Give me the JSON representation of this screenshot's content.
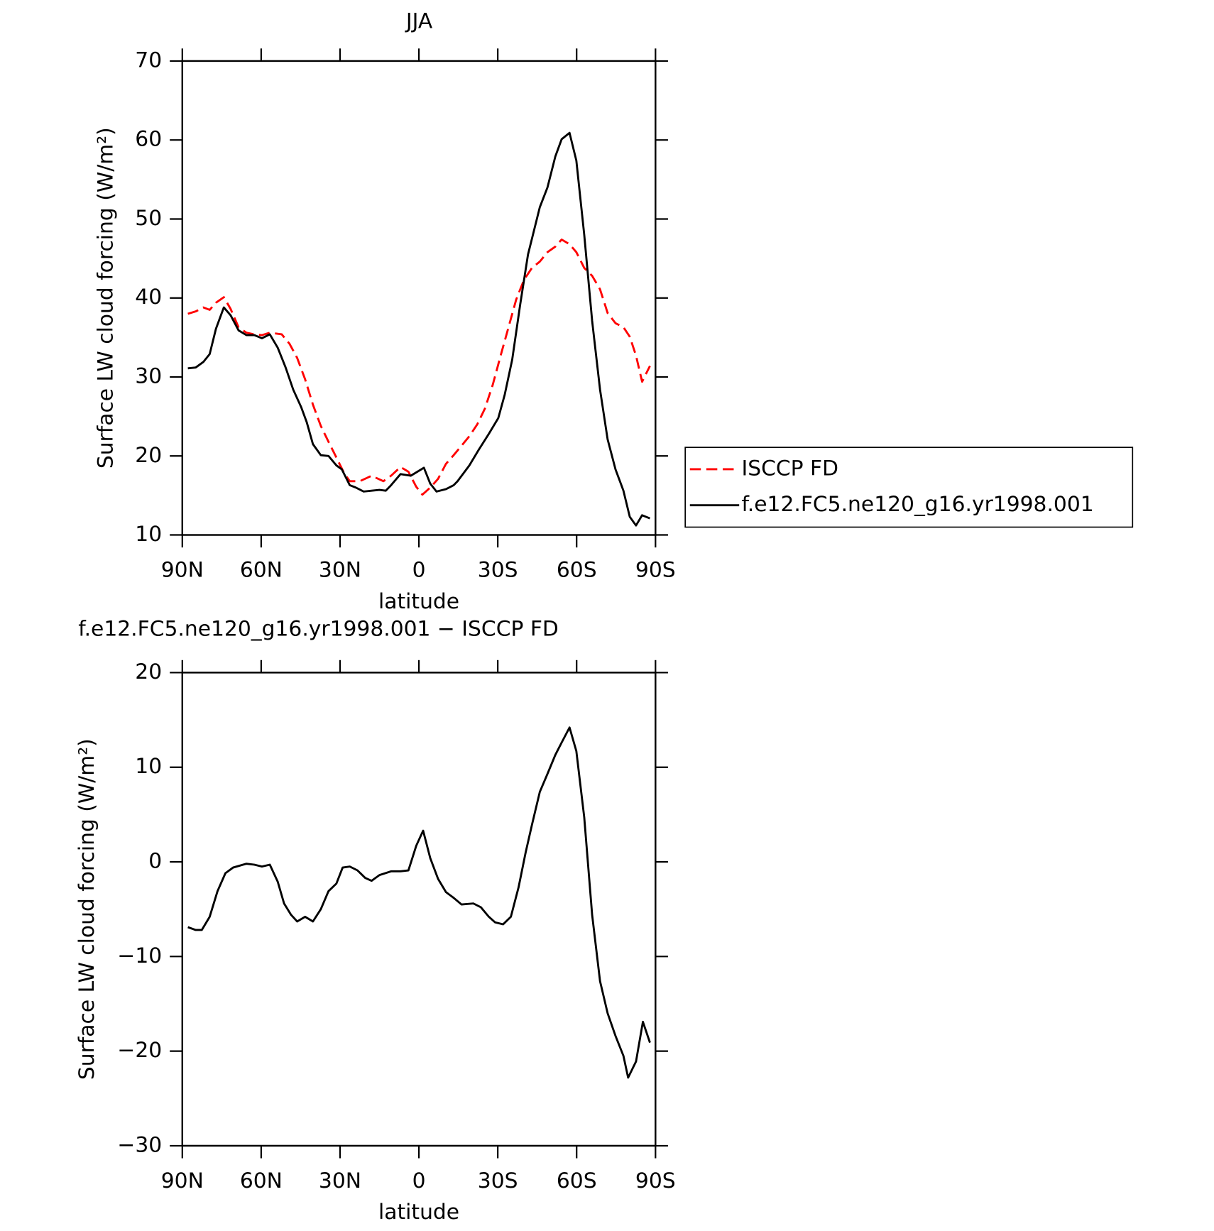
{
  "chart_data": [
    {
      "type": "line",
      "title": "JJA",
      "xlabel": "latitude",
      "ylabel": "Surface LW cloud forcing (W/m²)",
      "xlim": [
        90,
        -90
      ],
      "xticks": [
        {
          "value": 90,
          "label": "90N"
        },
        {
          "value": 60,
          "label": "60N"
        },
        {
          "value": 30,
          "label": "30N"
        },
        0,
        {
          "value": -30,
          "label": "30S"
        },
        {
          "value": -60,
          "label": "60S"
        },
        {
          "value": -90,
          "label": "90S"
        }
      ],
      "ylim": [
        10,
        70
      ],
      "yticks": [
        10,
        20,
        30,
        40,
        50,
        60,
        70
      ],
      "legend": "right",
      "series": [
        {
          "name": "ISCCP FD",
          "color": "#ff0000",
          "dash": true,
          "x": [
            87.9,
            84.9,
            82.0,
            79.6,
            77.2,
            74.2,
            71.6,
            68.6,
            65.6,
            62.6,
            59.7,
            56.7,
            52.2,
            49.2,
            46.3,
            43.3,
            40.3,
            37.3,
            34.4,
            31.4,
            28.4,
            26.3,
            22.5,
            18.0,
            13.5,
            10.6,
            7.0,
            4.0,
            1.0,
            -1.3,
            -4.3,
            -7.3,
            -10.3,
            -13.2,
            -16.2,
            -19.2,
            -22.2,
            -25.1,
            -28.1,
            -31.1,
            -34.1,
            -37.0,
            -40.0,
            -43.0,
            -46.0,
            -48.9,
            -51.9,
            -54.3,
            -57.3,
            -59.9,
            -62.9,
            -65.9,
            -68.9,
            -71.8,
            -74.8,
            -77.8,
            -80.2,
            -82.6,
            -84.9,
            -87.9
          ],
          "values": [
            38.0,
            38.3,
            38.8,
            38.5,
            39.4,
            40.1,
            38.6,
            36.3,
            35.6,
            35.4,
            35.3,
            35.6,
            35.4,
            34.2,
            32.4,
            29.7,
            26.5,
            23.8,
            21.8,
            19.8,
            17.8,
            16.8,
            16.8,
            17.5,
            16.8,
            17.5,
            18.6,
            18.0,
            16.1,
            15.1,
            16.0,
            17.1,
            19.0,
            20.1,
            21.3,
            22.5,
            24.0,
            26.0,
            29.0,
            32.7,
            36.3,
            39.8,
            42.3,
            43.8,
            44.6,
            45.8,
            46.5,
            47.4,
            46.8,
            45.8,
            43.8,
            42.8,
            41.1,
            38.1,
            36.8,
            36.3,
            35.1,
            32.7,
            29.4,
            31.4
          ]
        },
        {
          "name": "f.e12.FC5.ne120_g16.yr1998.001",
          "color": "#000000",
          "dash": false,
          "x": [
            87.9,
            84.9,
            82.0,
            79.6,
            77.2,
            74.2,
            71.6,
            68.6,
            65.6,
            62.6,
            59.7,
            56.7,
            53.7,
            50.7,
            47.8,
            44.8,
            42.7,
            40.3,
            37.3,
            34.4,
            31.4,
            29.3,
            26.3,
            24.0,
            21.0,
            18.0,
            15.0,
            12.6,
            10.6,
            7.0,
            3.1,
            -1.9,
            -4.3,
            -6.7,
            -10.3,
            -13.2,
            -14.7,
            -19.2,
            -22.8,
            -26.6,
            -30.2,
            -32.6,
            -35.5,
            -38.5,
            -41.5,
            -46.0,
            -48.9,
            -51.9,
            -54.3,
            -57.3,
            -59.9,
            -62.9,
            -65.9,
            -68.9,
            -71.8,
            -74.8,
            -77.8,
            -80.2,
            -82.6,
            -84.9,
            -87.9
          ],
          "values": [
            31.1,
            31.2,
            31.9,
            32.9,
            36.1,
            38.8,
            37.8,
            35.9,
            35.3,
            35.3,
            34.9,
            35.4,
            33.7,
            31.2,
            28.4,
            26.2,
            24.3,
            21.5,
            20.1,
            20.0,
            18.8,
            18.3,
            16.3,
            16.0,
            15.5,
            15.6,
            15.7,
            15.6,
            16.3,
            17.7,
            17.5,
            18.5,
            16.5,
            15.5,
            15.8,
            16.3,
            16.8,
            18.8,
            20.8,
            22.8,
            24.8,
            27.7,
            32.2,
            39.1,
            45.5,
            51.5,
            54.0,
            57.9,
            60.1,
            60.9,
            57.4,
            48.0,
            37.1,
            28.4,
            22.1,
            18.3,
            15.6,
            12.3,
            11.2,
            12.5,
            12.1
          ]
        }
      ]
    },
    {
      "type": "line",
      "title": "f.e12.FC5.ne120_g16.yr1998.001 − ISCCP FD",
      "xlabel": "latitude",
      "ylabel": "Surface LW cloud forcing (W/m²)",
      "xlim": [
        90,
        -90
      ],
      "xticks": [
        {
          "value": 90,
          "label": "90N"
        },
        {
          "value": 60,
          "label": "60N"
        },
        {
          "value": 30,
          "label": "30N"
        },
        0,
        {
          "value": -30,
          "label": "30S"
        },
        {
          "value": -60,
          "label": "60S"
        },
        {
          "value": -90,
          "label": "90S"
        }
      ],
      "ylim": [
        -30,
        20
      ],
      "yticks": [
        {
          "value": -30,
          "label": "−30"
        },
        {
          "value": -20,
          "label": "−20"
        },
        {
          "value": -10,
          "label": "−10"
        },
        0,
        10,
        20
      ],
      "series": [
        {
          "color": "#000000",
          "dash": false,
          "x": [
            87.9,
            84.9,
            82.6,
            79.6,
            76.6,
            73.6,
            70.7,
            65.6,
            62.6,
            59.7,
            56.7,
            53.7,
            51.3,
            48.6,
            46.3,
            43.3,
            40.3,
            37.3,
            34.4,
            31.4,
            29.0,
            26.3,
            23.4,
            20.4,
            18.0,
            15.0,
            10.6,
            7.0,
            4.0,
            1.0,
            -1.6,
            -4.3,
            -7.3,
            -10.3,
            -13.2,
            -16.2,
            -20.7,
            -23.6,
            -26.6,
            -29.0,
            -32.0,
            -35.0,
            -37.9,
            -40.6,
            -43.0,
            -46.0,
            -48.9,
            -51.9,
            -54.3,
            -57.3,
            -59.9,
            -62.9,
            -65.9,
            -68.9,
            -71.8,
            -74.8,
            -77.8,
            -79.6,
            -82.6,
            -85.2,
            -87.9
          ],
          "values": [
            -6.9,
            -7.2,
            -7.2,
            -5.8,
            -3.1,
            -1.2,
            -0.6,
            -0.2,
            -0.3,
            -0.5,
            -0.3,
            -2.1,
            -4.4,
            -5.6,
            -6.3,
            -5.8,
            -6.3,
            -5.0,
            -3.1,
            -2.3,
            -0.6,
            -0.5,
            -0.9,
            -1.7,
            -2.0,
            -1.4,
            -1.0,
            -1.0,
            -0.9,
            1.7,
            3.3,
            0.4,
            -1.8,
            -3.2,
            -3.8,
            -4.5,
            -4.4,
            -4.8,
            -5.8,
            -6.4,
            -6.6,
            -5.8,
            -2.7,
            1.0,
            3.9,
            7.4,
            9.3,
            11.3,
            12.6,
            14.2,
            11.7,
            4.7,
            -5.6,
            -12.6,
            -16.0,
            -18.4,
            -20.5,
            -22.8,
            -21.1,
            -16.9,
            -19.1
          ]
        }
      ]
    }
  ]
}
